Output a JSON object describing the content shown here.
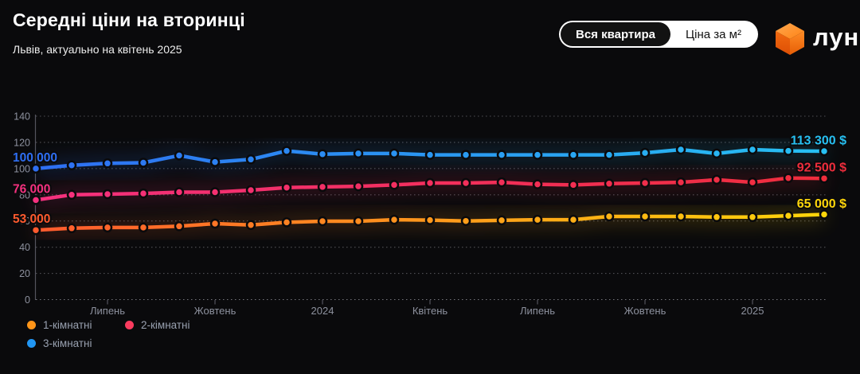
{
  "header": {
    "title": "Середні ціни на вторинці",
    "subtitle": "Львів, актуально на квітень 2025"
  },
  "toggle": {
    "options": [
      {
        "label": "Вся квартира",
        "selected": true
      },
      {
        "label": "Ціна за м²",
        "selected": false
      }
    ]
  },
  "logo": {
    "text": "лун",
    "cube_top_color": "#ff9a3c",
    "cube_left_color": "#e85c08",
    "cube_right_color": "#fb7d1c"
  },
  "chart_data": {
    "type": "line",
    "points_count": 23,
    "x_axis": {
      "ticks": [
        {
          "index": 2,
          "label": "Липень"
        },
        {
          "index": 5,
          "label": "Жовтень"
        },
        {
          "index": 8,
          "label": "2024"
        },
        {
          "index": 11,
          "label": "Квітень"
        },
        {
          "index": 14,
          "label": "Липень"
        },
        {
          "index": 17,
          "label": "Жовтень"
        },
        {
          "index": 20,
          "label": "2025"
        }
      ]
    },
    "y_axis": {
      "min": 0,
      "max": 140,
      "step": 20,
      "values_in": "thousands of $"
    },
    "series": [
      {
        "name": "1-кімнатні",
        "start_label": "53 000",
        "end_label": "65 000 $",
        "color_start": "#ff5a2e",
        "color_end": "#ffd60a",
        "legend_color": "#ff9518",
        "values_thousands": [
          53,
          54.5,
          55,
          55,
          56,
          58,
          57,
          59,
          59.8,
          59.8,
          61,
          60.7,
          60,
          60.5,
          61,
          61,
          63.5,
          63.5,
          63.5,
          63,
          63,
          64,
          65
        ]
      },
      {
        "name": "2-кімнатні",
        "start_label": "76 000",
        "end_label": "92 500 $",
        "color_start": "#f5317f",
        "color_end": "#ef2d3c",
        "legend_color": "#fa3b5e",
        "values_thousands": [
          76,
          80,
          80.5,
          81,
          82,
          82,
          83.5,
          85.5,
          86,
          86.5,
          87.5,
          89,
          89,
          89.5,
          88,
          87.5,
          88.5,
          89,
          89.5,
          91.5,
          89.5,
          92.8,
          92.5
        ]
      },
      {
        "name": "3-кімнатні",
        "start_label": "100 000",
        "end_label": "113 300 $",
        "color_start": "#2e6ef2",
        "color_end": "#27c0f2",
        "legend_color": "#2196f3",
        "values_thousands": [
          100,
          102.5,
          104,
          104.5,
          110,
          105,
          107,
          113.5,
          111,
          111.5,
          111.5,
          110.5,
          110.5,
          110.5,
          110.5,
          110.5,
          110.5,
          112,
          114.5,
          111.5,
          114.5,
          113.5,
          113.3
        ]
      }
    ]
  },
  "colors": {
    "background": "#0a0a0c",
    "grid": "#8a8a93",
    "axis": "#54545e",
    "tick_text": "#8d919e",
    "legend_text": "#99a1b0"
  }
}
